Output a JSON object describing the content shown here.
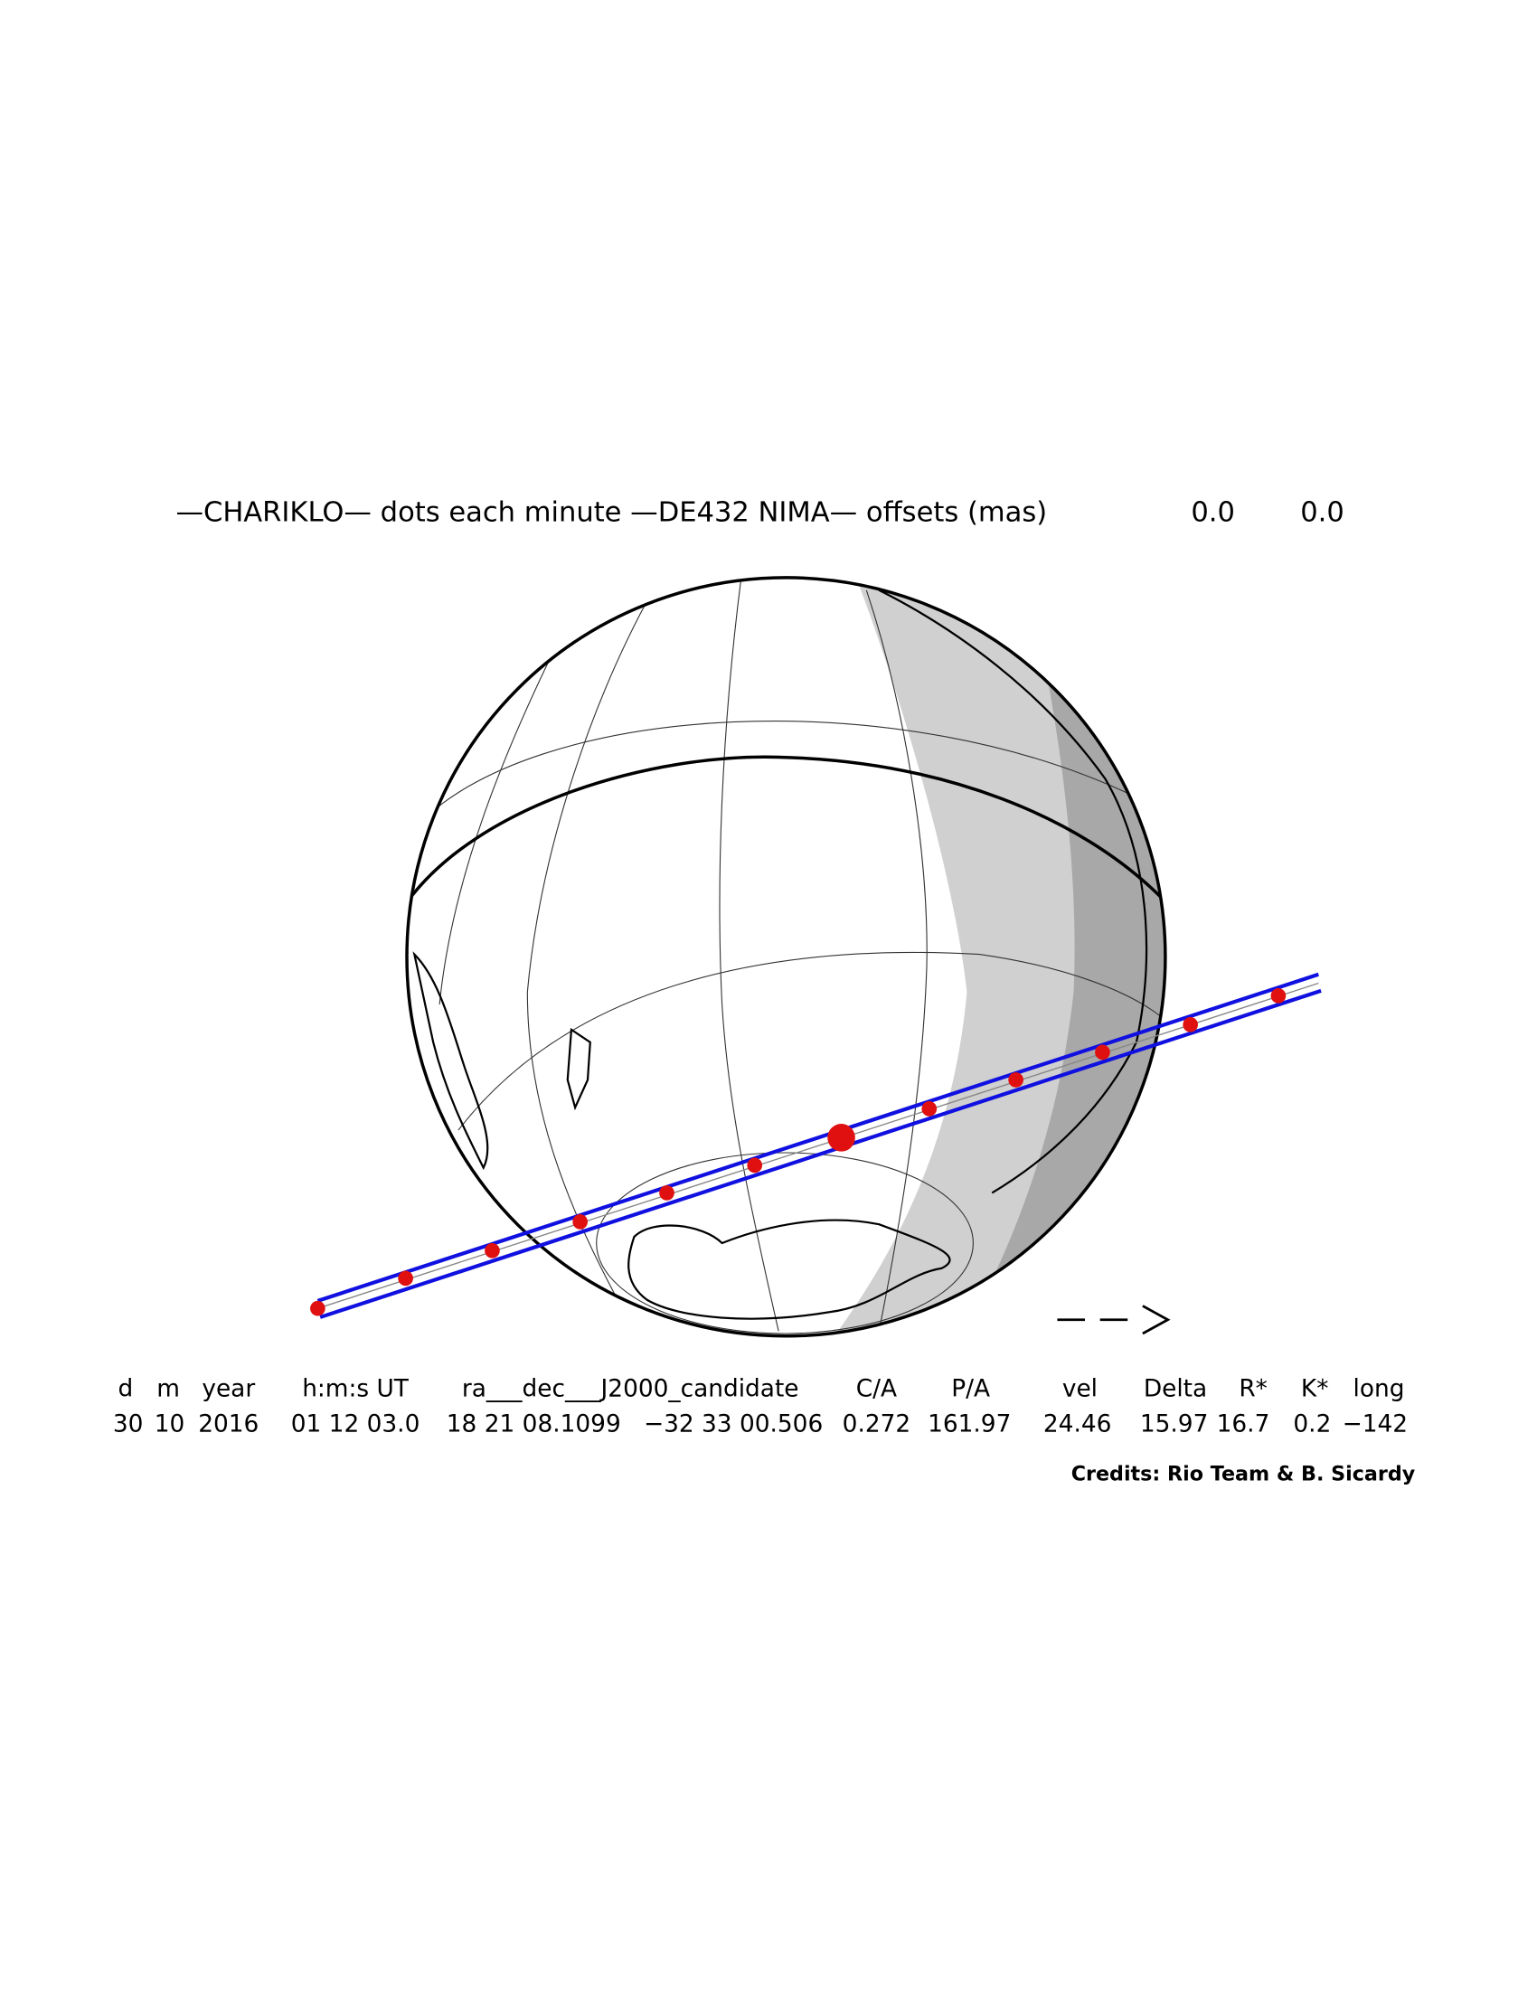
{
  "header": {
    "title": "—CHARIKLO— dots each minute —DE432 NIMA— offsets (mas)",
    "offset_ra": "0.0",
    "offset_dec": "0.0"
  },
  "table": {
    "headers": [
      "d",
      "m",
      "year",
      "h:m:s UT",
      "ra___dec___J2000_candidate",
      "C/A",
      "P/A",
      "vel",
      "Delta",
      "R*",
      "K*",
      "long"
    ],
    "values": [
      "30",
      "10",
      "2016",
      "01 12 03.0",
      "18 21 08.1099",
      "−32 33 00.506",
      "0.272",
      "161.97",
      "24.46",
      "15.97",
      "16.7",
      "0.2",
      "−142"
    ]
  },
  "credits": "Credits: Rio Team & B. Sicardy"
}
